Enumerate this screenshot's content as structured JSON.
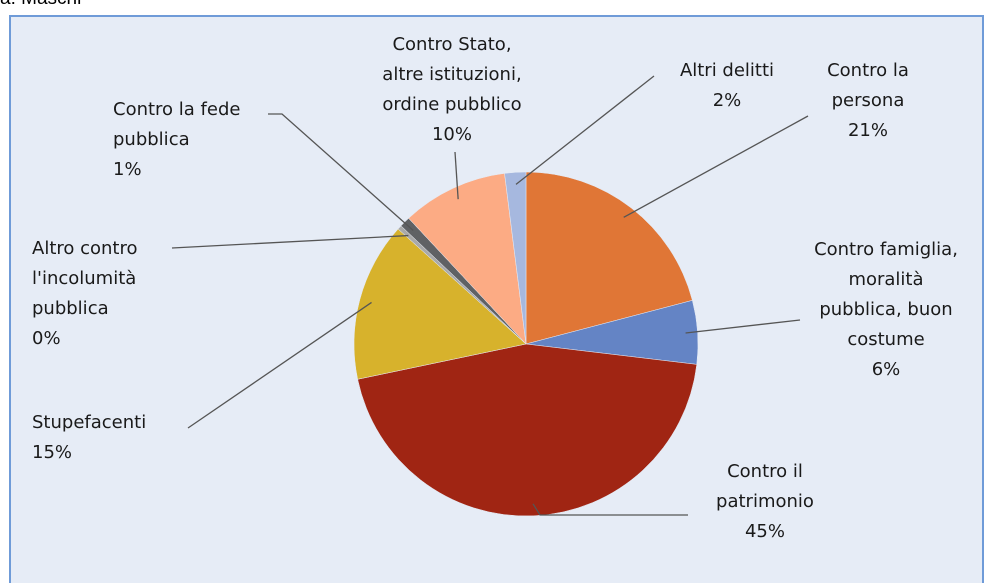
{
  "caption_fragment": "a: Maschi",
  "chart_data": {
    "type": "pie",
    "title": "",
    "slices": [
      {
        "label": "Contro la persona",
        "lines": [
          "Contro la",
          "persona"
        ],
        "value": 21,
        "pct": "21%",
        "color": "#e07636"
      },
      {
        "label": "Contro famiglia, moralità pubblica, buon costume",
        "lines": [
          "Contro famiglia,",
          "moralità",
          "pubblica, buon",
          "costume"
        ],
        "value": 6,
        "pct": "6%",
        "color": "#6484c5"
      },
      {
        "label": "Contro il patrimonio",
        "lines": [
          "Contro il",
          "patrimonio"
        ],
        "value": 45,
        "pct": "45%",
        "color": "#a02513"
      },
      {
        "label": "Stupefacenti",
        "lines": [
          "Stupefacenti"
        ],
        "value": 15,
        "pct": "15%",
        "color": "#d7b22c"
      },
      {
        "label": "Altro contro l'incolumità pubblica",
        "lines": [
          "Altro contro",
          "l'incolumità",
          "pubblica"
        ],
        "value": 0.4,
        "pct": "0%",
        "color": "#a9a9a9"
      },
      {
        "label": "Contro la fede pubblica",
        "lines": [
          "Contro la fede",
          "pubblica"
        ],
        "value": 1,
        "pct": "1%",
        "color": "#5f6164"
      },
      {
        "label": "Contro Stato, altre istituzioni, ordine pubblico",
        "lines": [
          "Contro Stato,",
          "altre istituzioni,",
          "ordine pubblico"
        ],
        "value": 10,
        "pct": "10%",
        "color": "#fcab84"
      },
      {
        "label": "Altri delitti",
        "lines": [
          "Altri  delitti"
        ],
        "value": 2,
        "pct": "2%",
        "color": "#a6b8df"
      }
    ]
  }
}
